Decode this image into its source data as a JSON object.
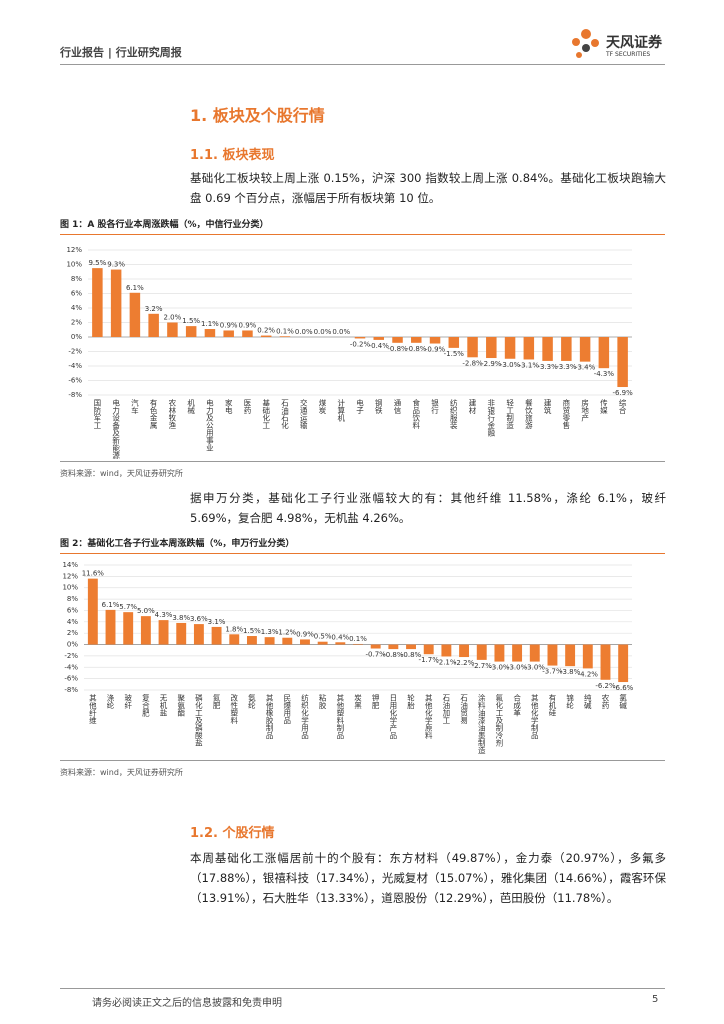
{
  "header": {
    "report_type": "行业报告",
    "separator": "|",
    "report_name": "行业研究周报",
    "logo_text": "天风证券",
    "logo_sub": "TF SECURITIES"
  },
  "section_1": {
    "heading": "1. 板块及个股行情",
    "sub_1": {
      "heading": "1.1. 板块表现",
      "paragraph_1": "基础化工板块较上周上涨 0.15%，沪深 300 指数较上周上涨 0.84%。基础化工板块跑输大盘 0.69 个百分点，涨幅居于所有板块第 10 位。",
      "paragraph_2": "据申万分类，基础化工子行业涨幅较大的有：其他纤维 11.58%，涤纶 6.1%，玻纤 5.69%，复合肥 4.98%，无机盐 4.26%。"
    },
    "sub_2": {
      "heading": "1.2. 个股行情",
      "paragraph": "本周基础化工涨幅居前十的个股有：东方材料（49.87%），金力泰（20.97%），多氟多（17.88%），银禧科技（17.34%），光威复材（15.07%），雅化集团（14.66%），霞客环保（13.91%），石大胜华（13.33%），道恩股份（12.29%），芭田股份（11.78%）。"
    }
  },
  "chart_data": [
    {
      "type": "bar",
      "title": "图 1：A 股各行业本周涨跌幅（%，中信行业分类）",
      "source": "资料来源：wind，天风证券研究所",
      "color": "#ED7D31",
      "grid": true,
      "categories": [
        "国防军工",
        "电力设备及新能源",
        "汽车",
        "有色金属",
        "农林牧渔",
        "机械",
        "电力及公用事业",
        "家电",
        "医药",
        "基础化工",
        "石油石化",
        "交通运输",
        "煤炭",
        "计算机",
        "电子",
        "钢铁",
        "通信",
        "食品饮料",
        "银行",
        "纺织服装",
        "建材",
        "非银行金融",
        "轻工制造",
        "餐饮旅游",
        "建筑",
        "商贸零售",
        "房地产",
        "传媒",
        "综合"
      ],
      "values": [
        9.5,
        9.3,
        6.1,
        3.2,
        2.0,
        1.5,
        1.1,
        0.9,
        0.9,
        0.2,
        0.1,
        0.0,
        0.0,
        0.0,
        -0.2,
        -0.4,
        -0.8,
        -0.8,
        -0.9,
        -1.5,
        -2.8,
        -2.9,
        -3.0,
        -3.1,
        -3.3,
        -3.3,
        -3.4,
        -4.3,
        -6.9
      ],
      "value_labels": [
        "9.5%",
        "9.3%",
        "6.1%",
        "3.2%",
        "2.0%",
        "1.5%",
        "1.1%",
        "0.9%",
        "0.9%",
        "0.2%",
        "0.1%",
        "0.0%",
        "0.0%",
        "0.0%",
        "-0.2%",
        "-0.4%",
        "-0.8%",
        "-0.8%",
        "-0.9%",
        "-1.5%",
        "-2.8%",
        "-2.9%",
        "-3.0%",
        "-3.1%",
        "-3.3%",
        "-3.3%",
        "-3.4%",
        "-4.3%",
        "-6.9%"
      ],
      "ylim": [
        -8,
        12
      ],
      "yticks": [
        {
          "value": 12,
          "label": "12%"
        },
        {
          "value": 10,
          "label": "10%"
        },
        {
          "value": 8,
          "label": "8%"
        },
        {
          "value": 6,
          "label": "6%"
        },
        {
          "value": 4,
          "label": "4%"
        },
        {
          "value": 2,
          "label": "2%"
        },
        {
          "value": 0,
          "label": "0%"
        },
        {
          "value": -2,
          "label": "-2%"
        },
        {
          "value": -4,
          "label": "-4%"
        },
        {
          "value": -6,
          "label": "-6%"
        },
        {
          "value": -8,
          "label": "-8%"
        }
      ]
    },
    {
      "type": "bar",
      "title": "图 2：基础化工各子行业本周涨跌幅（%，申万行业分类）",
      "source": "资料来源：wind，天风证券研究所",
      "color": "#ED7D31",
      "grid": true,
      "categories": [
        "其他纤维",
        "涤纶",
        "玻纤",
        "复合肥",
        "无机盐",
        "聚氨酯",
        "磷化工及磷酸盐",
        "氮肥",
        "改性塑料",
        "氨纶",
        "其他橡胶制品",
        "民爆用品",
        "纺织化学用品",
        "粘胶",
        "其他塑料制品",
        "炭黑",
        "钾肥",
        "日用化学产品",
        "轮胎",
        "其他化学原料",
        "石油加工",
        "石油贸易",
        "涂料油漆油墨制造",
        "氟化工及制冷剂",
        "合成革",
        "其他化学制品",
        "有机硅",
        "锦纶",
        "纯碱",
        "农药",
        "氯碱"
      ],
      "values": [
        11.6,
        6.1,
        5.7,
        5.0,
        4.3,
        3.8,
        3.6,
        3.1,
        1.8,
        1.5,
        1.3,
        1.2,
        0.9,
        0.5,
        0.4,
        0.1,
        -0.7,
        -0.8,
        -0.8,
        -1.7,
        -2.1,
        -2.2,
        -2.7,
        -3.0,
        -3.0,
        -3.0,
        -3.7,
        -3.8,
        -4.2,
        -6.2,
        -6.6
      ],
      "value_labels": [
        "11.6%",
        "6.1%",
        "5.7%",
        "5.0%",
        "4.3%",
        "3.8%",
        "3.6%",
        "3.1%",
        "1.8%",
        "1.5%",
        "1.3%",
        "1.2%",
        "0.9%",
        "0.5%",
        "0.4%",
        "0.1%",
        "-0.7%",
        "-0.8%",
        "-0.8%",
        "-1.7%",
        "-2.1%",
        "-2.2%",
        "-2.7%",
        "-3.0%",
        "-3.0%",
        "-3.0%",
        "-3.7%",
        "-3.8%",
        "-4.2%",
        "-6.2%",
        "-6.6%"
      ],
      "ylim": [
        -8,
        14
      ],
      "yticks": [
        {
          "value": 14,
          "label": "14%"
        },
        {
          "value": 12,
          "label": "12%"
        },
        {
          "value": 10,
          "label": "10%"
        },
        {
          "value": 8,
          "label": "8%"
        },
        {
          "value": 6,
          "label": "6%"
        },
        {
          "value": 4,
          "label": "4%"
        },
        {
          "value": 2,
          "label": "2%"
        },
        {
          "value": 0,
          "label": "0%"
        },
        {
          "value": -2,
          "label": "-2%"
        },
        {
          "value": -4,
          "label": "-4%"
        },
        {
          "value": -6,
          "label": "-6%"
        },
        {
          "value": -8,
          "label": "-8%"
        }
      ]
    }
  ],
  "footer": {
    "disclaimer": "请务必阅读正文之后的信息披露和免责申明",
    "page": 5
  }
}
